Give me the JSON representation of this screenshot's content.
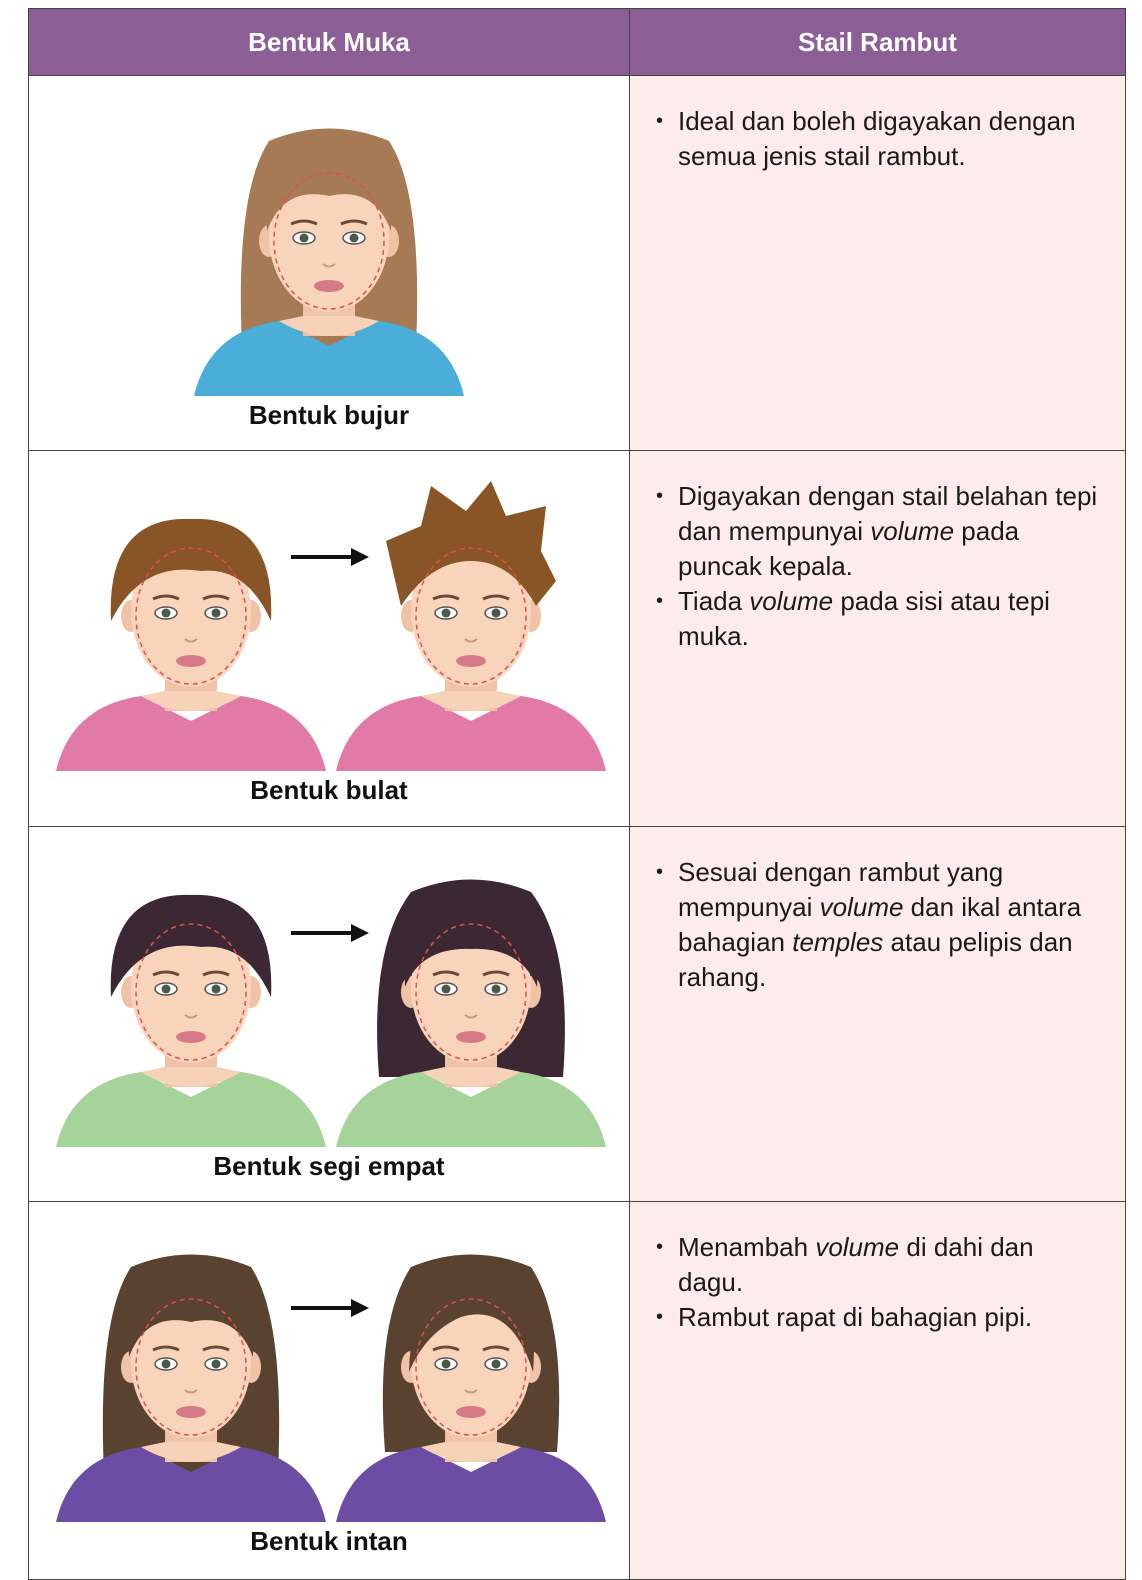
{
  "table": {
    "header": [
      "Bentuk Muka",
      "Stail Rambut"
    ],
    "rows": [
      {
        "caption": "Bentuk bujur",
        "bullets": [
          [
            {
              "text": "Ideal dan boleh digayakan dengan semua jenis stail rambut."
            }
          ]
        ]
      },
      {
        "caption": "Bentuk bulat",
        "bullets": [
          [
            {
              "text": "Digayakan dengan stail belahan tepi dan mempunyai "
            },
            {
              "text": "volume",
              "italic": true
            },
            {
              "text": " pada puncak kepala."
            }
          ],
          [
            {
              "text": "Tiada "
            },
            {
              "text": "volume",
              "italic": true
            },
            {
              "text": " pada sisi atau tepi muka."
            }
          ]
        ]
      },
      {
        "caption": "Bentuk segi empat",
        "bullets": [
          [
            {
              "text": "Sesuai dengan rambut yang mempunyai "
            },
            {
              "text": "volume",
              "italic": true
            },
            {
              "text": " dan ikal antara bahagian "
            },
            {
              "text": "temples",
              "italic": true
            },
            {
              "text": " atau pelipis dan rahang."
            }
          ]
        ]
      },
      {
        "caption": "Bentuk intan",
        "bullets": [
          [
            {
              "text": "Menambah "
            },
            {
              "text": "volume",
              "italic": true
            },
            {
              "text": " di dahi dan dagu."
            }
          ],
          [
            {
              "text": "Rambut rapat di bahagian pipi."
            }
          ]
        ]
      }
    ]
  }
}
